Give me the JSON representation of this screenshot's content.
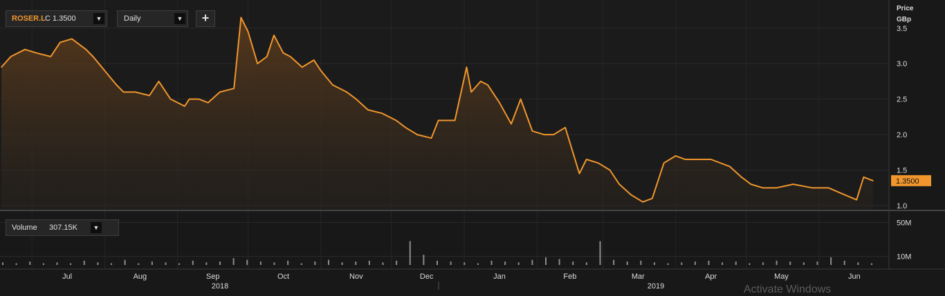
{
  "toolbar": {
    "symbol": "ROSER.L",
    "close_label": "C 1.3500",
    "period": "Daily",
    "add_label": "+",
    "caret": "▼"
  },
  "price_axis": {
    "title_line1": "Price",
    "title_line2": "GBp"
  },
  "volume_panel": {
    "label": "Volume",
    "value": "307.15K"
  },
  "last_price_label": "1.3500",
  "watermark": "Activate Windows",
  "colors": {
    "line": "#f0962d",
    "last_price_tag": "#f0962d",
    "volume_bar": "#8c8c8c"
  },
  "chart_data": [
    {
      "type": "line",
      "title": "",
      "series": [
        {
          "name": "ROSER.L",
          "x": [
            "2018-06-18",
            "2018-06-22",
            "2018-06-28",
            "2018-07-03",
            "2018-07-09",
            "2018-07-13",
            "2018-07-18",
            "2018-07-24",
            "2018-07-27",
            "2018-08-01",
            "2018-08-06",
            "2018-08-09",
            "2018-08-14",
            "2018-08-20",
            "2018-08-24",
            "2018-08-29",
            "2018-09-04",
            "2018-09-06",
            "2018-09-10",
            "2018-09-14",
            "2018-09-19",
            "2018-09-25",
            "2018-09-28",
            "2018-10-01",
            "2018-10-05",
            "2018-10-09",
            "2018-10-12",
            "2018-10-16",
            "2018-10-19",
            "2018-10-24",
            "2018-10-29",
            "2018-11-01",
            "2018-11-06",
            "2018-11-12",
            "2018-11-16",
            "2018-11-21",
            "2018-11-27",
            "2018-12-03",
            "2018-12-07",
            "2018-12-12",
            "2018-12-18",
            "2018-12-21",
            "2018-12-28",
            "2019-01-02",
            "2019-01-04",
            "2019-01-08",
            "2019-01-11",
            "2019-01-16",
            "2019-01-21",
            "2019-01-25",
            "2019-01-30",
            "2019-02-04",
            "2019-02-08",
            "2019-02-13",
            "2019-02-19",
            "2019-02-22",
            "2019-02-27",
            "2019-03-04",
            "2019-03-08",
            "2019-03-13",
            "2019-03-18",
            "2019-03-22",
            "2019-03-27",
            "2019-04-01",
            "2019-04-05",
            "2019-04-10",
            "2019-04-16",
            "2019-04-24",
            "2019-04-29",
            "2019-05-03",
            "2019-05-08",
            "2019-05-14",
            "2019-05-21",
            "2019-05-29",
            "2019-06-05",
            "2019-06-12",
            "2019-06-17",
            "2019-06-20",
            "2019-06-24"
          ],
          "y": [
            2.95,
            3.1,
            3.2,
            3.15,
            3.1,
            3.3,
            3.35,
            3.2,
            3.1,
            2.9,
            2.7,
            2.6,
            2.6,
            2.55,
            2.75,
            2.5,
            2.4,
            2.5,
            2.5,
            2.45,
            2.6,
            2.65,
            3.65,
            3.45,
            3.0,
            3.1,
            3.4,
            3.15,
            3.1,
            2.95,
            3.05,
            2.9,
            2.7,
            2.6,
            2.5,
            2.35,
            2.3,
            2.2,
            2.1,
            2.0,
            1.95,
            2.2,
            2.2,
            2.95,
            2.6,
            2.75,
            2.7,
            2.45,
            2.15,
            2.5,
            2.05,
            2.0,
            2.0,
            2.1,
            1.45,
            1.65,
            1.6,
            1.5,
            1.3,
            1.15,
            1.05,
            1.1,
            1.6,
            1.7,
            1.65,
            1.65,
            1.65,
            1.55,
            1.4,
            1.3,
            1.25,
            1.25,
            1.3,
            1.25,
            1.25,
            1.15,
            1.08,
            1.4,
            1.35
          ]
        }
      ],
      "xlabel": "",
      "ylabel": "Price GBp",
      "ylim": [
        0.95,
        3.8
      ],
      "y_ticks": [
        "1.0",
        "1.5",
        "2.0",
        "2.5",
        "3.0",
        "3.5"
      ],
      "x_ticks": [
        "Jul",
        "Aug",
        "Sep",
        "Oct",
        "Nov",
        "Dec",
        "Jan",
        "Feb",
        "Mar",
        "Apr",
        "May",
        "Jun"
      ],
      "year_labels": [
        "2018",
        "2019"
      ],
      "grid": true,
      "fill": "area gradient under line"
    },
    {
      "type": "bar",
      "title": "",
      "series": [
        {
          "name": "Volume",
          "values": [
            3,
            2,
            4,
            2,
            3,
            2,
            5,
            3,
            2,
            6,
            2,
            4,
            3,
            2,
            5,
            3,
            4,
            8,
            6,
            4,
            3,
            5,
            2,
            4,
            6,
            3,
            4,
            5,
            3,
            5,
            28,
            12,
            5,
            4,
            3,
            2,
            5,
            4,
            3,
            6,
            9,
            7,
            4,
            3,
            28,
            6,
            4,
            5,
            3,
            2,
            3,
            4,
            5,
            3,
            4,
            2,
            3,
            5,
            4,
            3,
            4,
            9,
            5,
            3,
            2
          ]
        }
      ],
      "ylabel": "",
      "ylim": [
        0,
        60
      ],
      "y_ticks": [
        "10M",
        "50M"
      ],
      "grid": true
    }
  ]
}
